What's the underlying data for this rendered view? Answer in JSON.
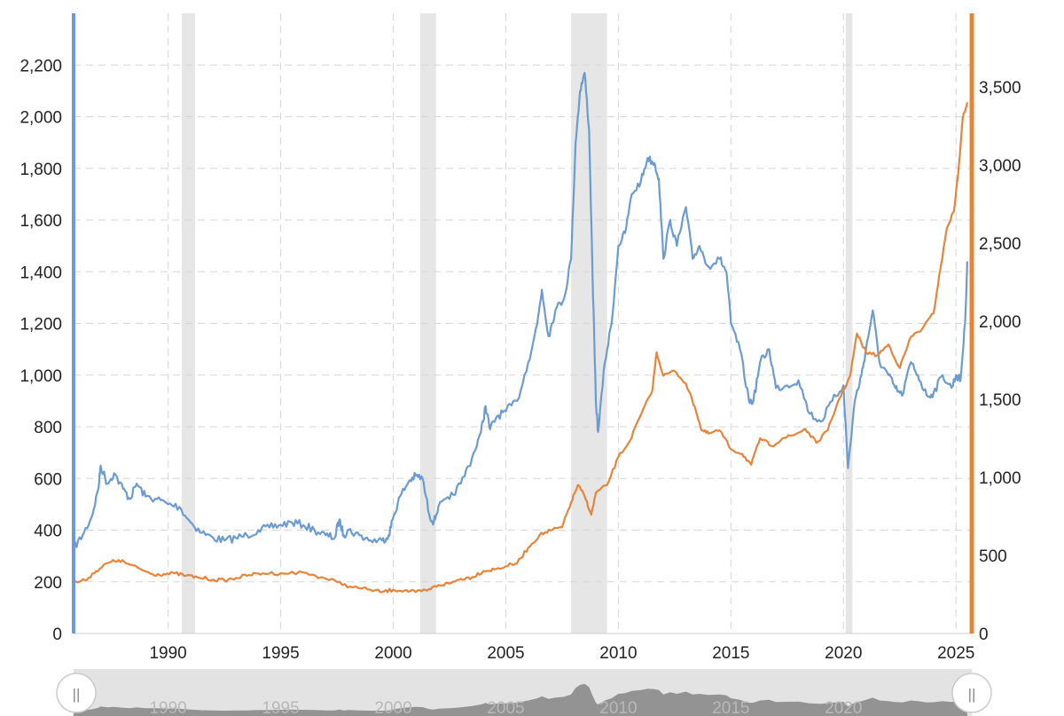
{
  "colors": {
    "left_series": "#6b9bd1",
    "right_series": "#e8843a",
    "recession": "#e6e6e6",
    "grid": "#d5d5d5",
    "navigator_bg": "#e3e3e3",
    "navigator_area": "#8a8a8a"
  },
  "chart_data": {
    "type": "line",
    "title": "",
    "xlabel": "",
    "ylabel_left": "",
    "ylabel_right": "",
    "x_range": [
      1985.8,
      2025.7
    ],
    "x_ticks": [
      1990,
      1995,
      2000,
      2005,
      2010,
      2015,
      2020,
      2025
    ],
    "x_tick_labels": [
      "1990",
      "1995",
      "2000",
      "2005",
      "2010",
      "2015",
      "2020",
      "2025"
    ],
    "y_left_range": [
      0,
      2400
    ],
    "y_left_ticks": [
      0,
      200,
      400,
      600,
      800,
      1000,
      1200,
      1400,
      1600,
      1800,
      2000,
      2200
    ],
    "y_left_tick_labels": [
      "0",
      "200",
      "400",
      "600",
      "800",
      "1,000",
      "1,200",
      "1,400",
      "1,600",
      "1,800",
      "2,000",
      "2,200"
    ],
    "y_right_range": [
      0,
      3970
    ],
    "y_right_ticks": [
      0,
      500,
      1000,
      1500,
      2000,
      2500,
      3000,
      3500
    ],
    "y_right_tick_labels": [
      "0",
      "500",
      "1,000",
      "1,500",
      "2,000",
      "2,500",
      "3,000",
      "3,500"
    ],
    "grid": true,
    "shaded_periods": [
      [
        1990.6,
        1991.2
      ],
      [
        2001.2,
        2001.9
      ],
      [
        2007.9,
        2009.5
      ],
      [
        2020.1,
        2020.4
      ]
    ],
    "series": [
      {
        "axis": "left",
        "points": [
          [
            1985.8,
            330
          ],
          [
            1986.2,
            380
          ],
          [
            1986.6,
            450
          ],
          [
            1986.9,
            560
          ],
          [
            1987.0,
            650
          ],
          [
            1987.3,
            580
          ],
          [
            1987.6,
            620
          ],
          [
            1988.0,
            560
          ],
          [
            1988.3,
            520
          ],
          [
            1988.6,
            580
          ],
          [
            1989.0,
            530
          ],
          [
            1989.5,
            520
          ],
          [
            1990.0,
            500
          ],
          [
            1990.5,
            490
          ],
          [
            1991.0,
            430
          ],
          [
            1991.5,
            390
          ],
          [
            1992.0,
            370
          ],
          [
            1992.5,
            360
          ],
          [
            1993.0,
            370
          ],
          [
            1993.5,
            380
          ],
          [
            1994.0,
            400
          ],
          [
            1994.5,
            410
          ],
          [
            1995.0,
            420
          ],
          [
            1995.5,
            430
          ],
          [
            1996.0,
            420
          ],
          [
            1996.5,
            400
          ],
          [
            1997.0,
            380
          ],
          [
            1997.4,
            370
          ],
          [
            1997.6,
            440
          ],
          [
            1997.8,
            380
          ],
          [
            1998.0,
            400
          ],
          [
            1998.5,
            380
          ],
          [
            1999.0,
            360
          ],
          [
            1999.5,
            360
          ],
          [
            1999.8,
            380
          ],
          [
            2000.0,
            450
          ],
          [
            2000.3,
            530
          ],
          [
            2000.7,
            590
          ],
          [
            2001.0,
            610
          ],
          [
            2001.3,
            600
          ],
          [
            2001.6,
            460
          ],
          [
            2001.8,
            430
          ],
          [
            2002.0,
            490
          ],
          [
            2002.5,
            520
          ],
          [
            2003.0,
            580
          ],
          [
            2003.5,
            680
          ],
          [
            2003.9,
            780
          ],
          [
            2004.1,
            880
          ],
          [
            2004.3,
            790
          ],
          [
            2004.6,
            840
          ],
          [
            2005.0,
            860
          ],
          [
            2005.5,
            900
          ],
          [
            2006.0,
            1050
          ],
          [
            2006.4,
            1200
          ],
          [
            2006.6,
            1330
          ],
          [
            2006.9,
            1150
          ],
          [
            2007.2,
            1250
          ],
          [
            2007.6,
            1300
          ],
          [
            2007.9,
            1450
          ],
          [
            2008.1,
            1900
          ],
          [
            2008.3,
            2100
          ],
          [
            2008.5,
            2170
          ],
          [
            2008.7,
            1950
          ],
          [
            2008.85,
            1400
          ],
          [
            2009.0,
            900
          ],
          [
            2009.1,
            780
          ],
          [
            2009.4,
            1050
          ],
          [
            2009.7,
            1200
          ],
          [
            2010.0,
            1500
          ],
          [
            2010.3,
            1550
          ],
          [
            2010.6,
            1700
          ],
          [
            2011.0,
            1750
          ],
          [
            2011.3,
            1840
          ],
          [
            2011.6,
            1820
          ],
          [
            2011.8,
            1760
          ],
          [
            2012.0,
            1450
          ],
          [
            2012.3,
            1600
          ],
          [
            2012.6,
            1500
          ],
          [
            2013.0,
            1650
          ],
          [
            2013.3,
            1450
          ],
          [
            2013.6,
            1500
          ],
          [
            2014.0,
            1420
          ],
          [
            2014.5,
            1450
          ],
          [
            2014.8,
            1400
          ],
          [
            2015.0,
            1200
          ],
          [
            2015.4,
            1100
          ],
          [
            2015.8,
            900
          ],
          [
            2016.0,
            900
          ],
          [
            2016.3,
            1050
          ],
          [
            2016.7,
            1100
          ],
          [
            2017.0,
            950
          ],
          [
            2017.5,
            960
          ],
          [
            2018.0,
            980
          ],
          [
            2018.5,
            850
          ],
          [
            2019.0,
            820
          ],
          [
            2019.5,
            900
          ],
          [
            2020.0,
            960
          ],
          [
            2020.2,
            640
          ],
          [
            2020.5,
            900
          ],
          [
            2020.8,
            1000
          ],
          [
            2021.0,
            1100
          ],
          [
            2021.3,
            1250
          ],
          [
            2021.6,
            1050
          ],
          [
            2022.0,
            1000
          ],
          [
            2022.3,
            950
          ],
          [
            2022.6,
            920
          ],
          [
            2023.0,
            1050
          ],
          [
            2023.3,
            1000
          ],
          [
            2023.7,
            920
          ],
          [
            2024.0,
            930
          ],
          [
            2024.4,
            1000
          ],
          [
            2024.8,
            950
          ],
          [
            2025.0,
            1000
          ],
          [
            2025.2,
            980
          ],
          [
            2025.4,
            1200
          ],
          [
            2025.5,
            1440
          ]
        ]
      },
      {
        "axis": "right",
        "points": [
          [
            1985.8,
            325
          ],
          [
            1986.3,
            340
          ],
          [
            1986.8,
            400
          ],
          [
            1987.3,
            450
          ],
          [
            1987.8,
            470
          ],
          [
            1988.3,
            440
          ],
          [
            1988.8,
            410
          ],
          [
            1989.3,
            380
          ],
          [
            1989.8,
            380
          ],
          [
            1990.3,
            385
          ],
          [
            1990.8,
            370
          ],
          [
            1991.3,
            360
          ],
          [
            1992.0,
            345
          ],
          [
            1992.5,
            340
          ],
          [
            1993.0,
            355
          ],
          [
            1993.6,
            375
          ],
          [
            1994.2,
            385
          ],
          [
            1995.0,
            385
          ],
          [
            1996.0,
            390
          ],
          [
            1996.8,
            360
          ],
          [
            1997.5,
            330
          ],
          [
            1998.2,
            295
          ],
          [
            1999.0,
            280
          ],
          [
            1999.5,
            265
          ],
          [
            2000.0,
            280
          ],
          [
            2000.5,
            275
          ],
          [
            2001.0,
            265
          ],
          [
            2001.5,
            275
          ],
          [
            2002.0,
            310
          ],
          [
            2002.5,
            320
          ],
          [
            2003.0,
            350
          ],
          [
            2003.5,
            360
          ],
          [
            2004.0,
            400
          ],
          [
            2004.5,
            410
          ],
          [
            2005.0,
            430
          ],
          [
            2005.5,
            450
          ],
          [
            2006.0,
            550
          ],
          [
            2006.5,
            630
          ],
          [
            2007.0,
            660
          ],
          [
            2007.5,
            680
          ],
          [
            2007.9,
            840
          ],
          [
            2008.2,
            950
          ],
          [
            2008.5,
            880
          ],
          [
            2008.8,
            760
          ],
          [
            2009.0,
            900
          ],
          [
            2009.5,
            950
          ],
          [
            2010.0,
            1130
          ],
          [
            2010.5,
            1230
          ],
          [
            2011.0,
            1400
          ],
          [
            2011.5,
            1550
          ],
          [
            2011.7,
            1800
          ],
          [
            2012.0,
            1650
          ],
          [
            2012.5,
            1680
          ],
          [
            2013.0,
            1600
          ],
          [
            2013.4,
            1450
          ],
          [
            2013.7,
            1300
          ],
          [
            2014.0,
            1280
          ],
          [
            2014.5,
            1300
          ],
          [
            2015.0,
            1180
          ],
          [
            2015.5,
            1150
          ],
          [
            2015.9,
            1080
          ],
          [
            2016.3,
            1250
          ],
          [
            2016.8,
            1200
          ],
          [
            2017.3,
            1250
          ],
          [
            2017.8,
            1270
          ],
          [
            2018.3,
            1310
          ],
          [
            2018.8,
            1220
          ],
          [
            2019.3,
            1300
          ],
          [
            2019.8,
            1500
          ],
          [
            2020.3,
            1650
          ],
          [
            2020.6,
            1920
          ],
          [
            2021.0,
            1800
          ],
          [
            2021.5,
            1780
          ],
          [
            2022.0,
            1850
          ],
          [
            2022.5,
            1700
          ],
          [
            2023.0,
            1900
          ],
          [
            2023.5,
            1950
          ],
          [
            2024.0,
            2050
          ],
          [
            2024.3,
            2330
          ],
          [
            2024.6,
            2600
          ],
          [
            2024.9,
            2700
          ],
          [
            2025.1,
            2950
          ],
          [
            2025.3,
            3300
          ],
          [
            2025.5,
            3400
          ]
        ]
      }
    ]
  },
  "navigator": {
    "tick_labels": [
      "1990",
      "1995",
      "2000",
      "2005",
      "2010",
      "2015",
      "2020"
    ],
    "tick_years": [
      1990,
      1995,
      2000,
      2005,
      2010,
      2015,
      2020
    ],
    "left_handle_glyph": "||",
    "right_handle_glyph": "||"
  }
}
